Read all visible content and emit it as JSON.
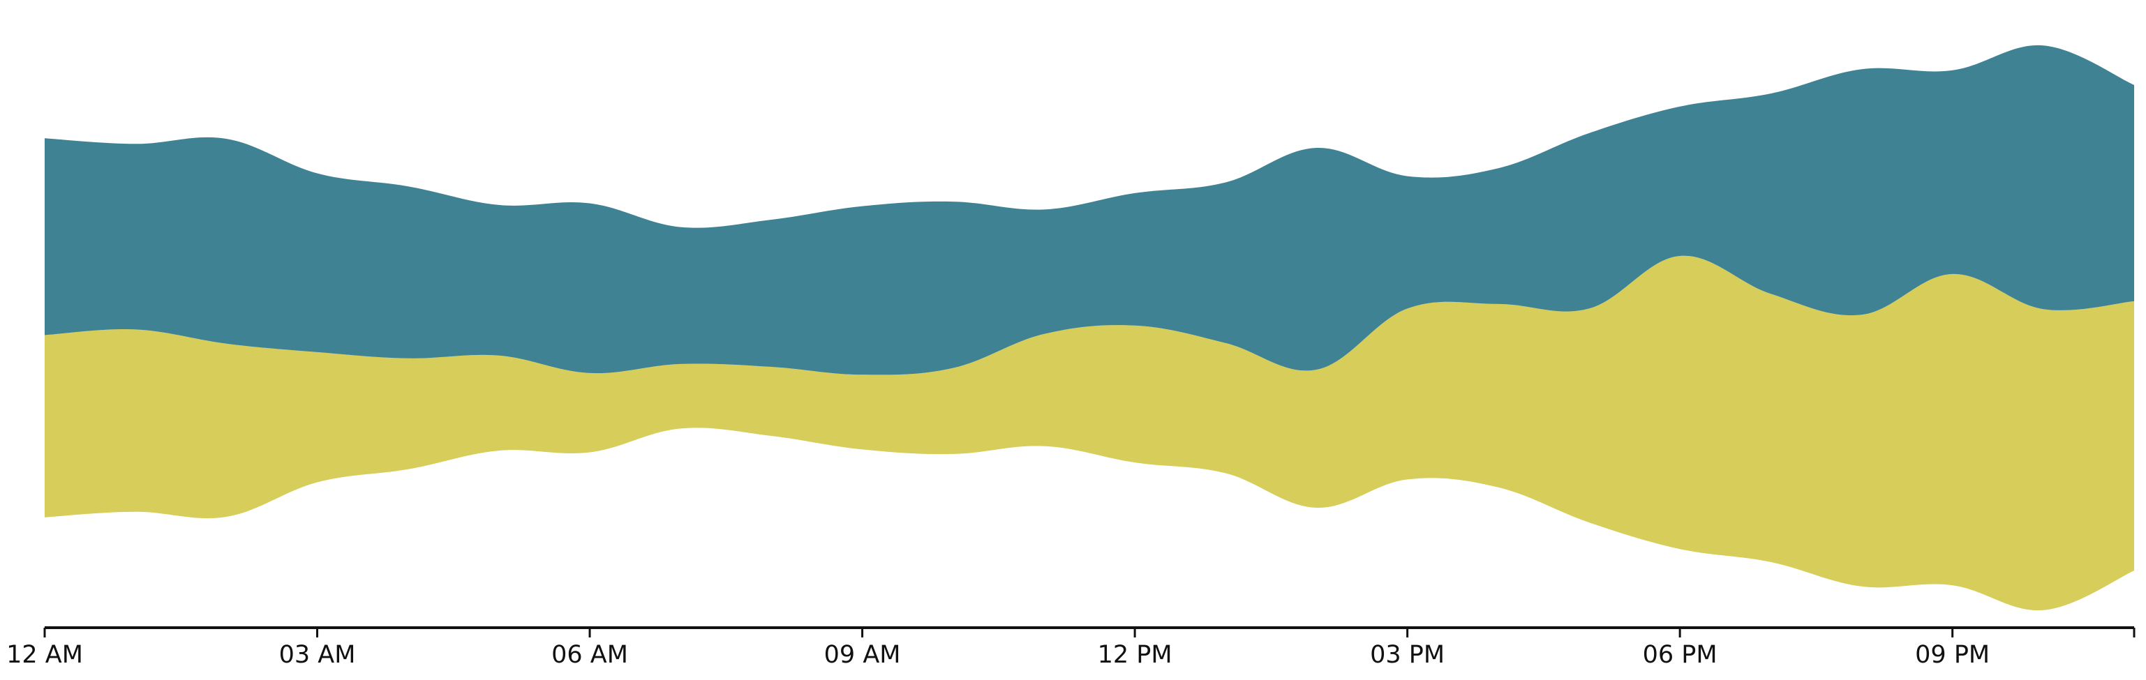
{
  "chart_data": {
    "type": "area",
    "layout": "streamgraph",
    "xlabel": "",
    "ylabel": "",
    "x_hours": [
      0,
      1,
      2,
      3,
      4,
      5,
      6,
      7,
      8,
      9,
      10,
      11,
      12,
      13,
      14,
      15,
      16,
      17,
      18,
      19,
      20,
      21,
      22,
      23
    ],
    "x_ticks": [
      {
        "hour": 0,
        "label": "12 AM"
      },
      {
        "hour": 3,
        "label": "03 AM"
      },
      {
        "hour": 6,
        "label": "06 AM"
      },
      {
        "hour": 9,
        "label": "09 AM"
      },
      {
        "hour": 12,
        "label": "12 PM"
      },
      {
        "hour": 15,
        "label": "03 PM"
      },
      {
        "hour": 18,
        "label": "06 PM"
      },
      {
        "hour": 21,
        "label": "09 PM"
      }
    ],
    "x_range": [
      0,
      23
    ],
    "series": [
      {
        "color": "#d6cd5a",
        "values": [
          161,
          161,
          153,
          115,
          98,
          84,
          70,
          57,
          61,
          66,
          76,
          99,
          121,
          115,
          122,
          151,
          162,
          189,
          259,
          237,
          240,
          275,
          266,
          238
        ]
      },
      {
        "color": "#3f8294",
        "values": [
          174,
          164,
          181,
          158,
          152,
          133,
          150,
          121,
          130,
          149,
          147,
          110,
          117,
          142,
          196,
          117,
          120,
          155,
          132,
          177,
          217,
          180,
          233,
          191
        ]
      }
    ],
    "y_range": [
      -265,
      265
    ],
    "grid": false,
    "legend": "none"
  }
}
